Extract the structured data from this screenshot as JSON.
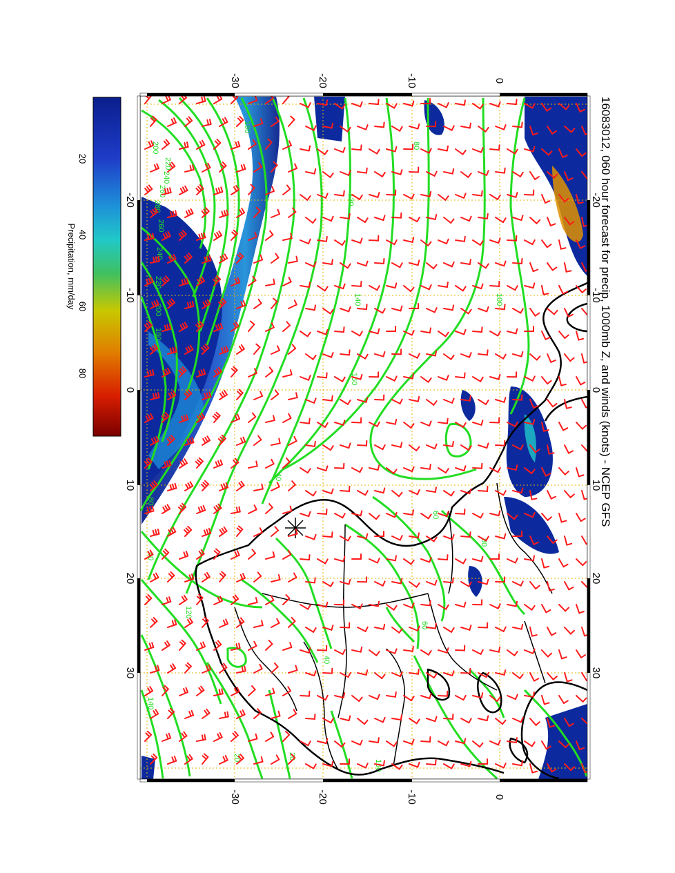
{
  "title": "16083012, 060 hour forecast for precip, 1000mb Z, and winds (knots) - NCEP GFS",
  "colorbar": {
    "label": "Precipitation, mm/day",
    "ticks": [
      "20",
      "40",
      "60",
      "80"
    ],
    "range_mm_day": [
      0,
      95
    ]
  },
  "axes": {
    "top_lat_ticks": [
      "-30",
      "-20",
      "-10",
      "0"
    ],
    "bottom_lat_ticks": [
      "-30",
      "-20",
      "-10",
      "0"
    ],
    "left_lon_ticks": [
      "-20",
      "-10",
      "0",
      "10",
      "20",
      "30"
    ],
    "right_lon_ticks": [
      "-20",
      "-10",
      "0",
      "10",
      "20",
      "30"
    ]
  },
  "contour_labels": [
    "180",
    "200",
    "220",
    "240",
    "260",
    "280",
    "260",
    "240",
    "220",
    "200",
    "180",
    "160",
    "140",
    "120",
    "100",
    "80",
    "60",
    "40",
    "20",
    "120",
    "140",
    "20",
    "40",
    "60",
    "80",
    "60",
    "80",
    "160"
  ],
  "colors": {
    "precip_low": "#0a1e8c",
    "precip_high": "#8b0000",
    "contour": "#22dd22",
    "barb": "#ff1a1a",
    "coast": "#000000",
    "grid": "#e6b400"
  },
  "map": {
    "projection": "rotated cylindrical (plot rotated 90 degrees)",
    "station_marker": "asterisk"
  }
}
